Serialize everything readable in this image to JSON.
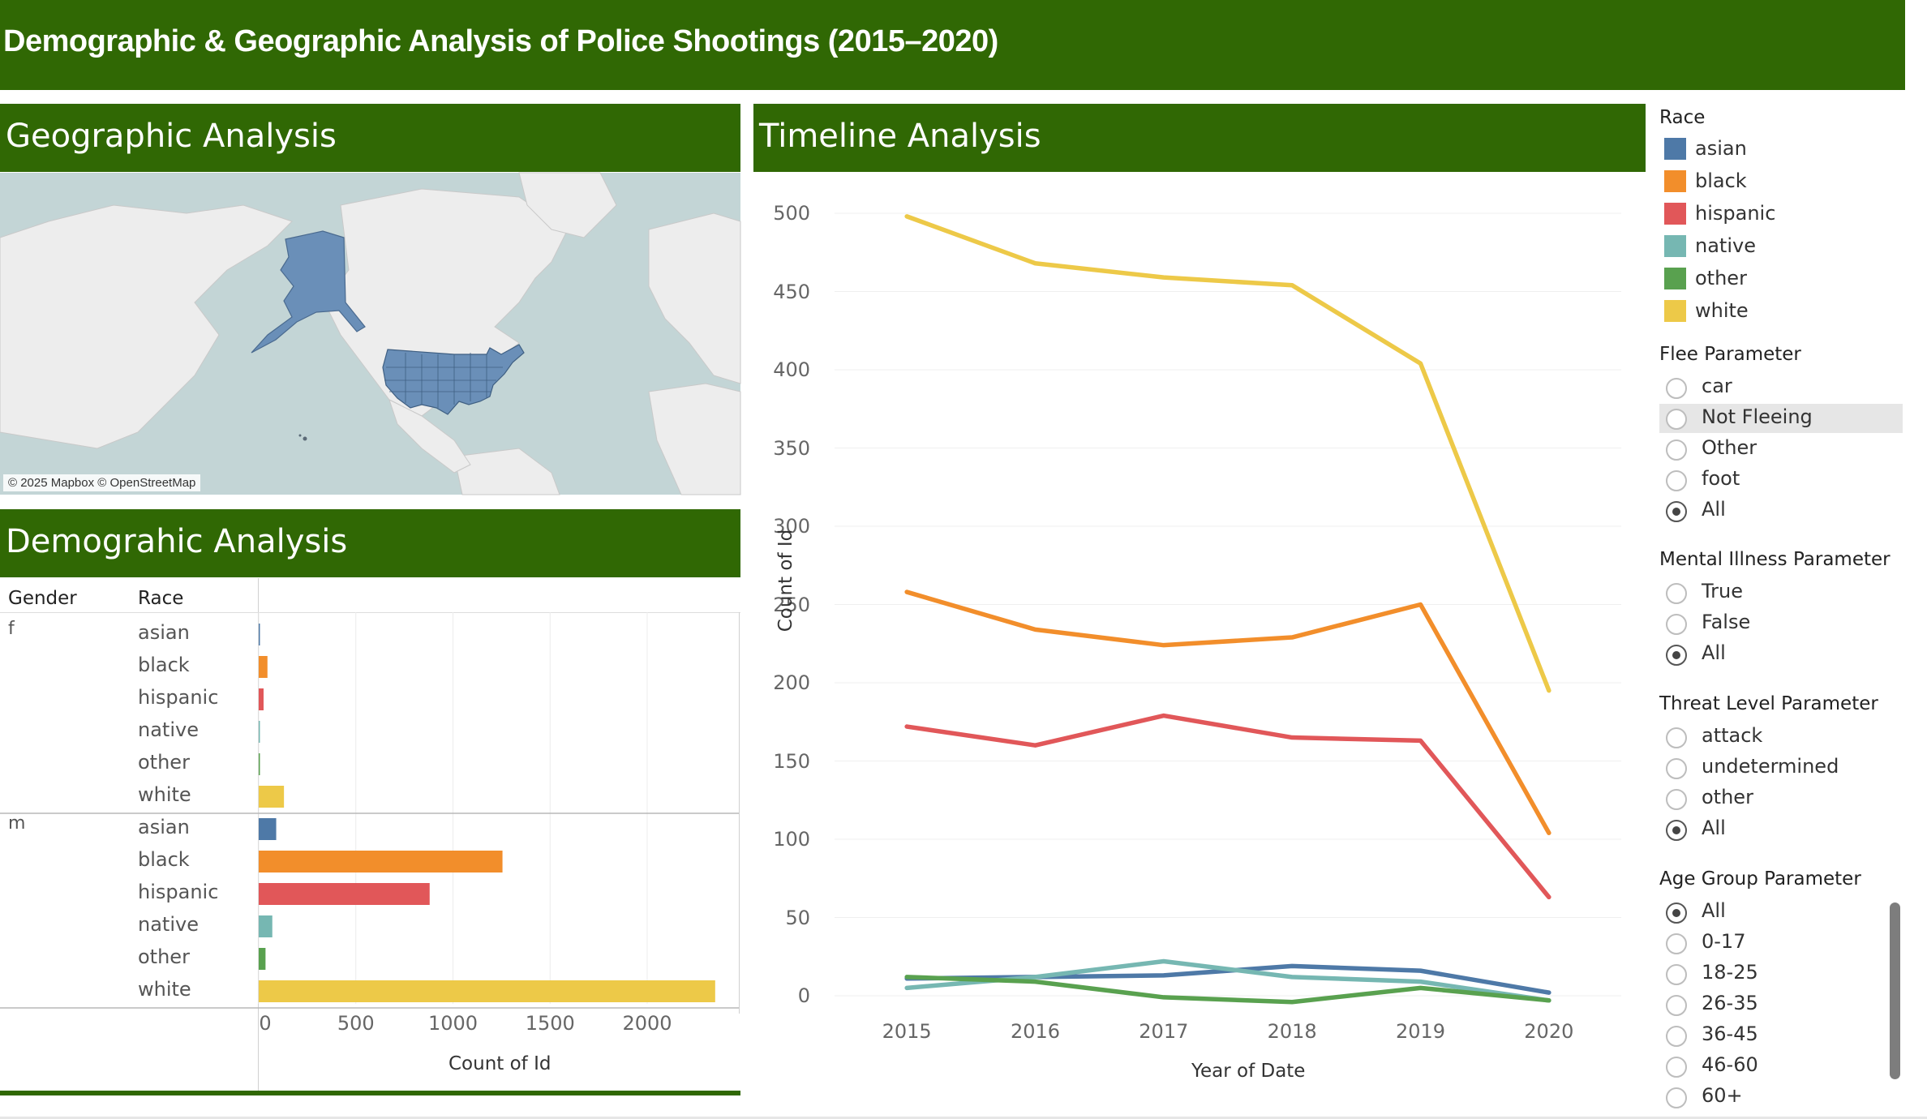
{
  "banner": {
    "title": "Demographic & Geographic Analysis of Police Shootings (2015–2020)"
  },
  "geo": {
    "title": "Geographic Analysis",
    "attribution": "© 2025 Mapbox © OpenStreetMap"
  },
  "demo": {
    "title": "Demograhic Analysis",
    "col_gender": "Gender",
    "col_race": "Race",
    "groups": [
      {
        "gender": "f",
        "rows": [
          {
            "race": "asian",
            "value": 5
          },
          {
            "race": "black",
            "value": 45
          },
          {
            "race": "hispanic",
            "value": 25
          },
          {
            "race": "native",
            "value": 3
          },
          {
            "race": "other",
            "value": 4
          },
          {
            "race": "white",
            "value": 130
          }
        ]
      },
      {
        "gender": "m",
        "rows": [
          {
            "race": "asian",
            "value": 90
          },
          {
            "race": "black",
            "value": 1255
          },
          {
            "race": "hispanic",
            "value": 880
          },
          {
            "race": "native",
            "value": 70
          },
          {
            "race": "other",
            "value": 35
          },
          {
            "race": "white",
            "value": 2350
          }
        ]
      }
    ],
    "xticks": [
      "0",
      "500",
      "1000",
      "1500",
      "2000"
    ],
    "xlabel": "Count of Id"
  },
  "timeline": {
    "title": "Timeline Analysis"
  },
  "chart_data": {
    "type": "line",
    "x": [
      "2015",
      "2016",
      "2017",
      "2018",
      "2019",
      "2020"
    ],
    "xlabel": "Year of Date",
    "ylabel": "Count of Id",
    "ylim": [
      0,
      500
    ],
    "yticks": [
      "0",
      "50",
      "100",
      "150",
      "200",
      "250",
      "300",
      "350",
      "400",
      "450",
      "500"
    ],
    "grid": true,
    "series": [
      {
        "name": "asian",
        "values": [
          11,
          12,
          13,
          19,
          16,
          2
        ]
      },
      {
        "name": "black",
        "values": [
          258,
          234,
          224,
          229,
          250,
          104
        ]
      },
      {
        "name": "hispanic",
        "values": [
          172,
          160,
          179,
          165,
          163,
          63
        ]
      },
      {
        "name": "native",
        "values": [
          5,
          12,
          22,
          12,
          9,
          -3
        ]
      },
      {
        "name": "other",
        "values": [
          12,
          9,
          -1,
          -4,
          5,
          -3
        ]
      },
      {
        "name": "white",
        "values": [
          498,
          468,
          459,
          454,
          404,
          195
        ]
      }
    ]
  },
  "legend": {
    "title": "Race",
    "items": [
      {
        "label": "asian",
        "color": "#4e79a7"
      },
      {
        "label": "black",
        "color": "#f28e2b"
      },
      {
        "label": "hispanic",
        "color": "#e15759"
      },
      {
        "label": "native",
        "color": "#76b7b2"
      },
      {
        "label": "other",
        "color": "#59a14f"
      },
      {
        "label": "white",
        "color": "#edc948"
      }
    ]
  },
  "params": {
    "flee": {
      "title": "Flee Parameter",
      "options": [
        "car",
        "Not Fleeing",
        "Other",
        "foot",
        "All"
      ],
      "selected": "All",
      "highlighted": "Not Fleeing"
    },
    "mental": {
      "title": "Mental Illness Parameter",
      "options": [
        "True",
        "False",
        "All"
      ],
      "selected": "All"
    },
    "threat": {
      "title": "Threat Level Parameter",
      "options": [
        "attack",
        "undetermined",
        "other",
        "All"
      ],
      "selected": "All"
    },
    "age": {
      "title": "Age Group Parameter",
      "options": [
        "All",
        "0-17",
        "18-25",
        "26-35",
        "36-45",
        "46-60",
        "60+"
      ],
      "selected": "All"
    }
  },
  "colors": {
    "header_green": "#306804",
    "map_ocean": "#c3d5d6",
    "map_land": "#ededed",
    "map_us": "#6a8fb8"
  }
}
